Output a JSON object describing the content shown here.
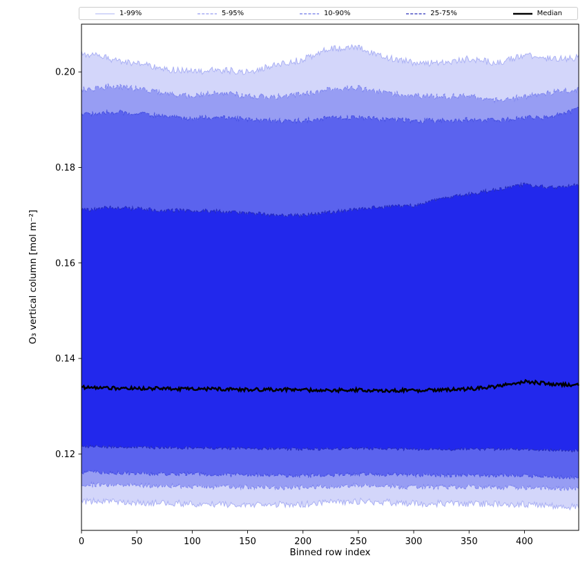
{
  "figure": {
    "background": "#ffffff"
  },
  "chart_data": {
    "type": "area",
    "title": "",
    "xlabel": "Binned row index",
    "ylabel": "O₃ vertical column [mol m⁻²]",
    "xlim": [
      0,
      449
    ],
    "ylim": [
      0.104,
      0.21
    ],
    "x_ticks": [
      0,
      50,
      100,
      150,
      200,
      250,
      300,
      350,
      400
    ],
    "y_ticks": [
      "0.12",
      "0.14",
      "0.16",
      "0.18",
      "0.20"
    ],
    "grid": false,
    "legend_position": "top",
    "legend": [
      {
        "label": "1-99%",
        "color": "#aab0f4",
        "dash": "none",
        "width": 1
      },
      {
        "label": "5-95%",
        "color": "#7a82ee",
        "dash": "4 2.2",
        "width": 1
      },
      {
        "label": "10-90%",
        "color": "#4650e0",
        "dash": "4 2.2",
        "width": 1.1
      },
      {
        "label": "25-75%",
        "color": "#262cb8",
        "dash": "4 2.2",
        "width": 1.2
      },
      {
        "label": "Median",
        "color": "#000000",
        "dash": "none",
        "width": 2.5
      }
    ],
    "bands": [
      {
        "name": "1-99%",
        "lower": "p1",
        "upper": "p99",
        "fill": "#d3d6fa"
      },
      {
        "name": "5-95%",
        "lower": "p5",
        "upper": "p95",
        "fill": "#979df3"
      },
      {
        "name": "10-90%",
        "lower": "p10",
        "upper": "p90",
        "fill": "#5b63ee"
      },
      {
        "name": "25-75%",
        "lower": "p25",
        "upper": "p75",
        "fill": "#2228ec"
      }
    ],
    "x_samples": [
      0,
      25,
      50,
      75,
      100,
      125,
      150,
      175,
      200,
      225,
      250,
      275,
      300,
      325,
      350,
      375,
      400,
      425,
      449
    ],
    "series": {
      "p99": [
        0.204,
        0.2028,
        0.2018,
        0.2006,
        0.2,
        0.2004,
        0.2,
        0.2014,
        0.2026,
        0.205,
        0.205,
        0.203,
        0.202,
        0.2018,
        0.2028,
        0.2018,
        0.2036,
        0.2026,
        0.203
      ],
      "p95": [
        0.1962,
        0.197,
        0.1966,
        0.1954,
        0.195,
        0.1956,
        0.195,
        0.1948,
        0.1954,
        0.1964,
        0.1966,
        0.1956,
        0.195,
        0.1948,
        0.195,
        0.194,
        0.1948,
        0.1958,
        0.1964
      ],
      "p90": [
        0.191,
        0.1916,
        0.1914,
        0.1906,
        0.1902,
        0.1906,
        0.19,
        0.1898,
        0.1898,
        0.1904,
        0.1906,
        0.19,
        0.1898,
        0.1898,
        0.19,
        0.1898,
        0.1904,
        0.1906,
        0.1922
      ],
      "p75": [
        0.171,
        0.1716,
        0.1714,
        0.171,
        0.171,
        0.1708,
        0.1704,
        0.1701,
        0.17,
        0.1706,
        0.1714,
        0.1718,
        0.172,
        0.1734,
        0.1744,
        0.1754,
        0.1764,
        0.1758,
        0.1764
      ],
      "median": [
        0.134,
        0.1338,
        0.1337,
        0.1337,
        0.1336,
        0.1336,
        0.1335,
        0.1335,
        0.1334,
        0.1333,
        0.1334,
        0.1333,
        0.1333,
        0.1334,
        0.1336,
        0.1341,
        0.1352,
        0.1346,
        0.1344
      ],
      "p25": [
        0.1216,
        0.1215,
        0.1214,
        0.1213,
        0.1213,
        0.1212,
        0.1212,
        0.1211,
        0.121,
        0.1211,
        0.1212,
        0.1211,
        0.121,
        0.121,
        0.121,
        0.121,
        0.121,
        0.1208,
        0.1207
      ],
      "p10": [
        0.1162,
        0.1161,
        0.1159,
        0.1158,
        0.1158,
        0.1157,
        0.1156,
        0.1156,
        0.1155,
        0.1156,
        0.1158,
        0.1157,
        0.1156,
        0.1155,
        0.1155,
        0.1155,
        0.1155,
        0.1152,
        0.1151
      ],
      "p5": [
        0.1136,
        0.1135,
        0.1134,
        0.1133,
        0.1132,
        0.1131,
        0.1131,
        0.113,
        0.113,
        0.1132,
        0.1134,
        0.1132,
        0.1131,
        0.1131,
        0.1131,
        0.113,
        0.113,
        0.1128,
        0.1127
      ],
      "p1": [
        0.1101,
        0.11,
        0.1098,
        0.1097,
        0.1096,
        0.1095,
        0.1094,
        0.1094,
        0.1095,
        0.1098,
        0.1101,
        0.1099,
        0.1097,
        0.1096,
        0.1096,
        0.1095,
        0.1095,
        0.1092,
        0.1089
      ]
    },
    "noise_amplitude": {
      "p99": 0.0007,
      "p95": 0.0006,
      "p90": 0.0005,
      "p75": 0.0004,
      "median": 0.00035,
      "p25": 0.0003,
      "p10": 0.0004,
      "p5": 0.0005,
      "p1": 0.0007
    }
  }
}
